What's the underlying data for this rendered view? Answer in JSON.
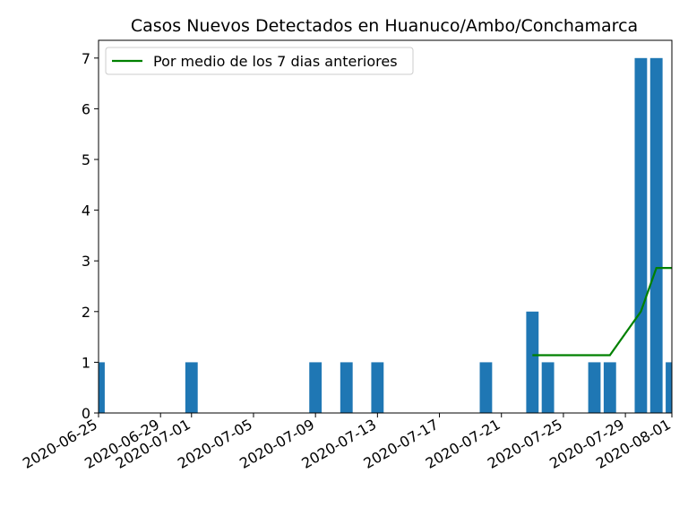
{
  "chart_data": {
    "type": "bar",
    "title": "Casos Nuevos Detectados en Huanuco/Ambo/Conchamarca",
    "xlabel": "",
    "ylabel": "",
    "x_range": [
      "2020-06-25",
      "2020-08-01"
    ],
    "ylim": [
      0,
      7.35
    ],
    "x_ticks": [
      "2020-06-25",
      "2020-06-29",
      "2020-07-01",
      "2020-07-05",
      "2020-07-09",
      "2020-07-13",
      "2020-07-17",
      "2020-07-21",
      "2020-07-25",
      "2020-07-29",
      "2020-08-01"
    ],
    "y_ticks": [
      0,
      1,
      2,
      3,
      4,
      5,
      6,
      7
    ],
    "bar_color": "#1f77b4",
    "bars": [
      {
        "date": "2020-06-25",
        "value": 1
      },
      {
        "date": "2020-07-01",
        "value": 1
      },
      {
        "date": "2020-07-09",
        "value": 1
      },
      {
        "date": "2020-07-11",
        "value": 1
      },
      {
        "date": "2020-07-13",
        "value": 1
      },
      {
        "date": "2020-07-20",
        "value": 1
      },
      {
        "date": "2020-07-23",
        "value": 2
      },
      {
        "date": "2020-07-24",
        "value": 1
      },
      {
        "date": "2020-07-27",
        "value": 1
      },
      {
        "date": "2020-07-28",
        "value": 1
      },
      {
        "date": "2020-07-30",
        "value": 7
      },
      {
        "date": "2020-07-31",
        "value": 7
      },
      {
        "date": "2020-08-01",
        "value": 1
      }
    ],
    "series": [
      {
        "name": "Por medio de los 7 dias anteriores",
        "type": "line",
        "color": "#008000",
        "points": [
          {
            "date": "2020-07-23",
            "value": 1.14
          },
          {
            "date": "2020-07-24",
            "value": 1.14
          },
          {
            "date": "2020-07-25",
            "value": 1.14
          },
          {
            "date": "2020-07-26",
            "value": 1.14
          },
          {
            "date": "2020-07-27",
            "value": 1.14
          },
          {
            "date": "2020-07-28",
            "value": 1.14
          },
          {
            "date": "2020-07-29",
            "value": 1.57
          },
          {
            "date": "2020-07-30",
            "value": 2.0
          },
          {
            "date": "2020-07-31",
            "value": 2.86
          },
          {
            "date": "2020-08-01",
            "value": 2.86
          }
        ]
      }
    ],
    "legend": "top-left",
    "grid": false
  }
}
